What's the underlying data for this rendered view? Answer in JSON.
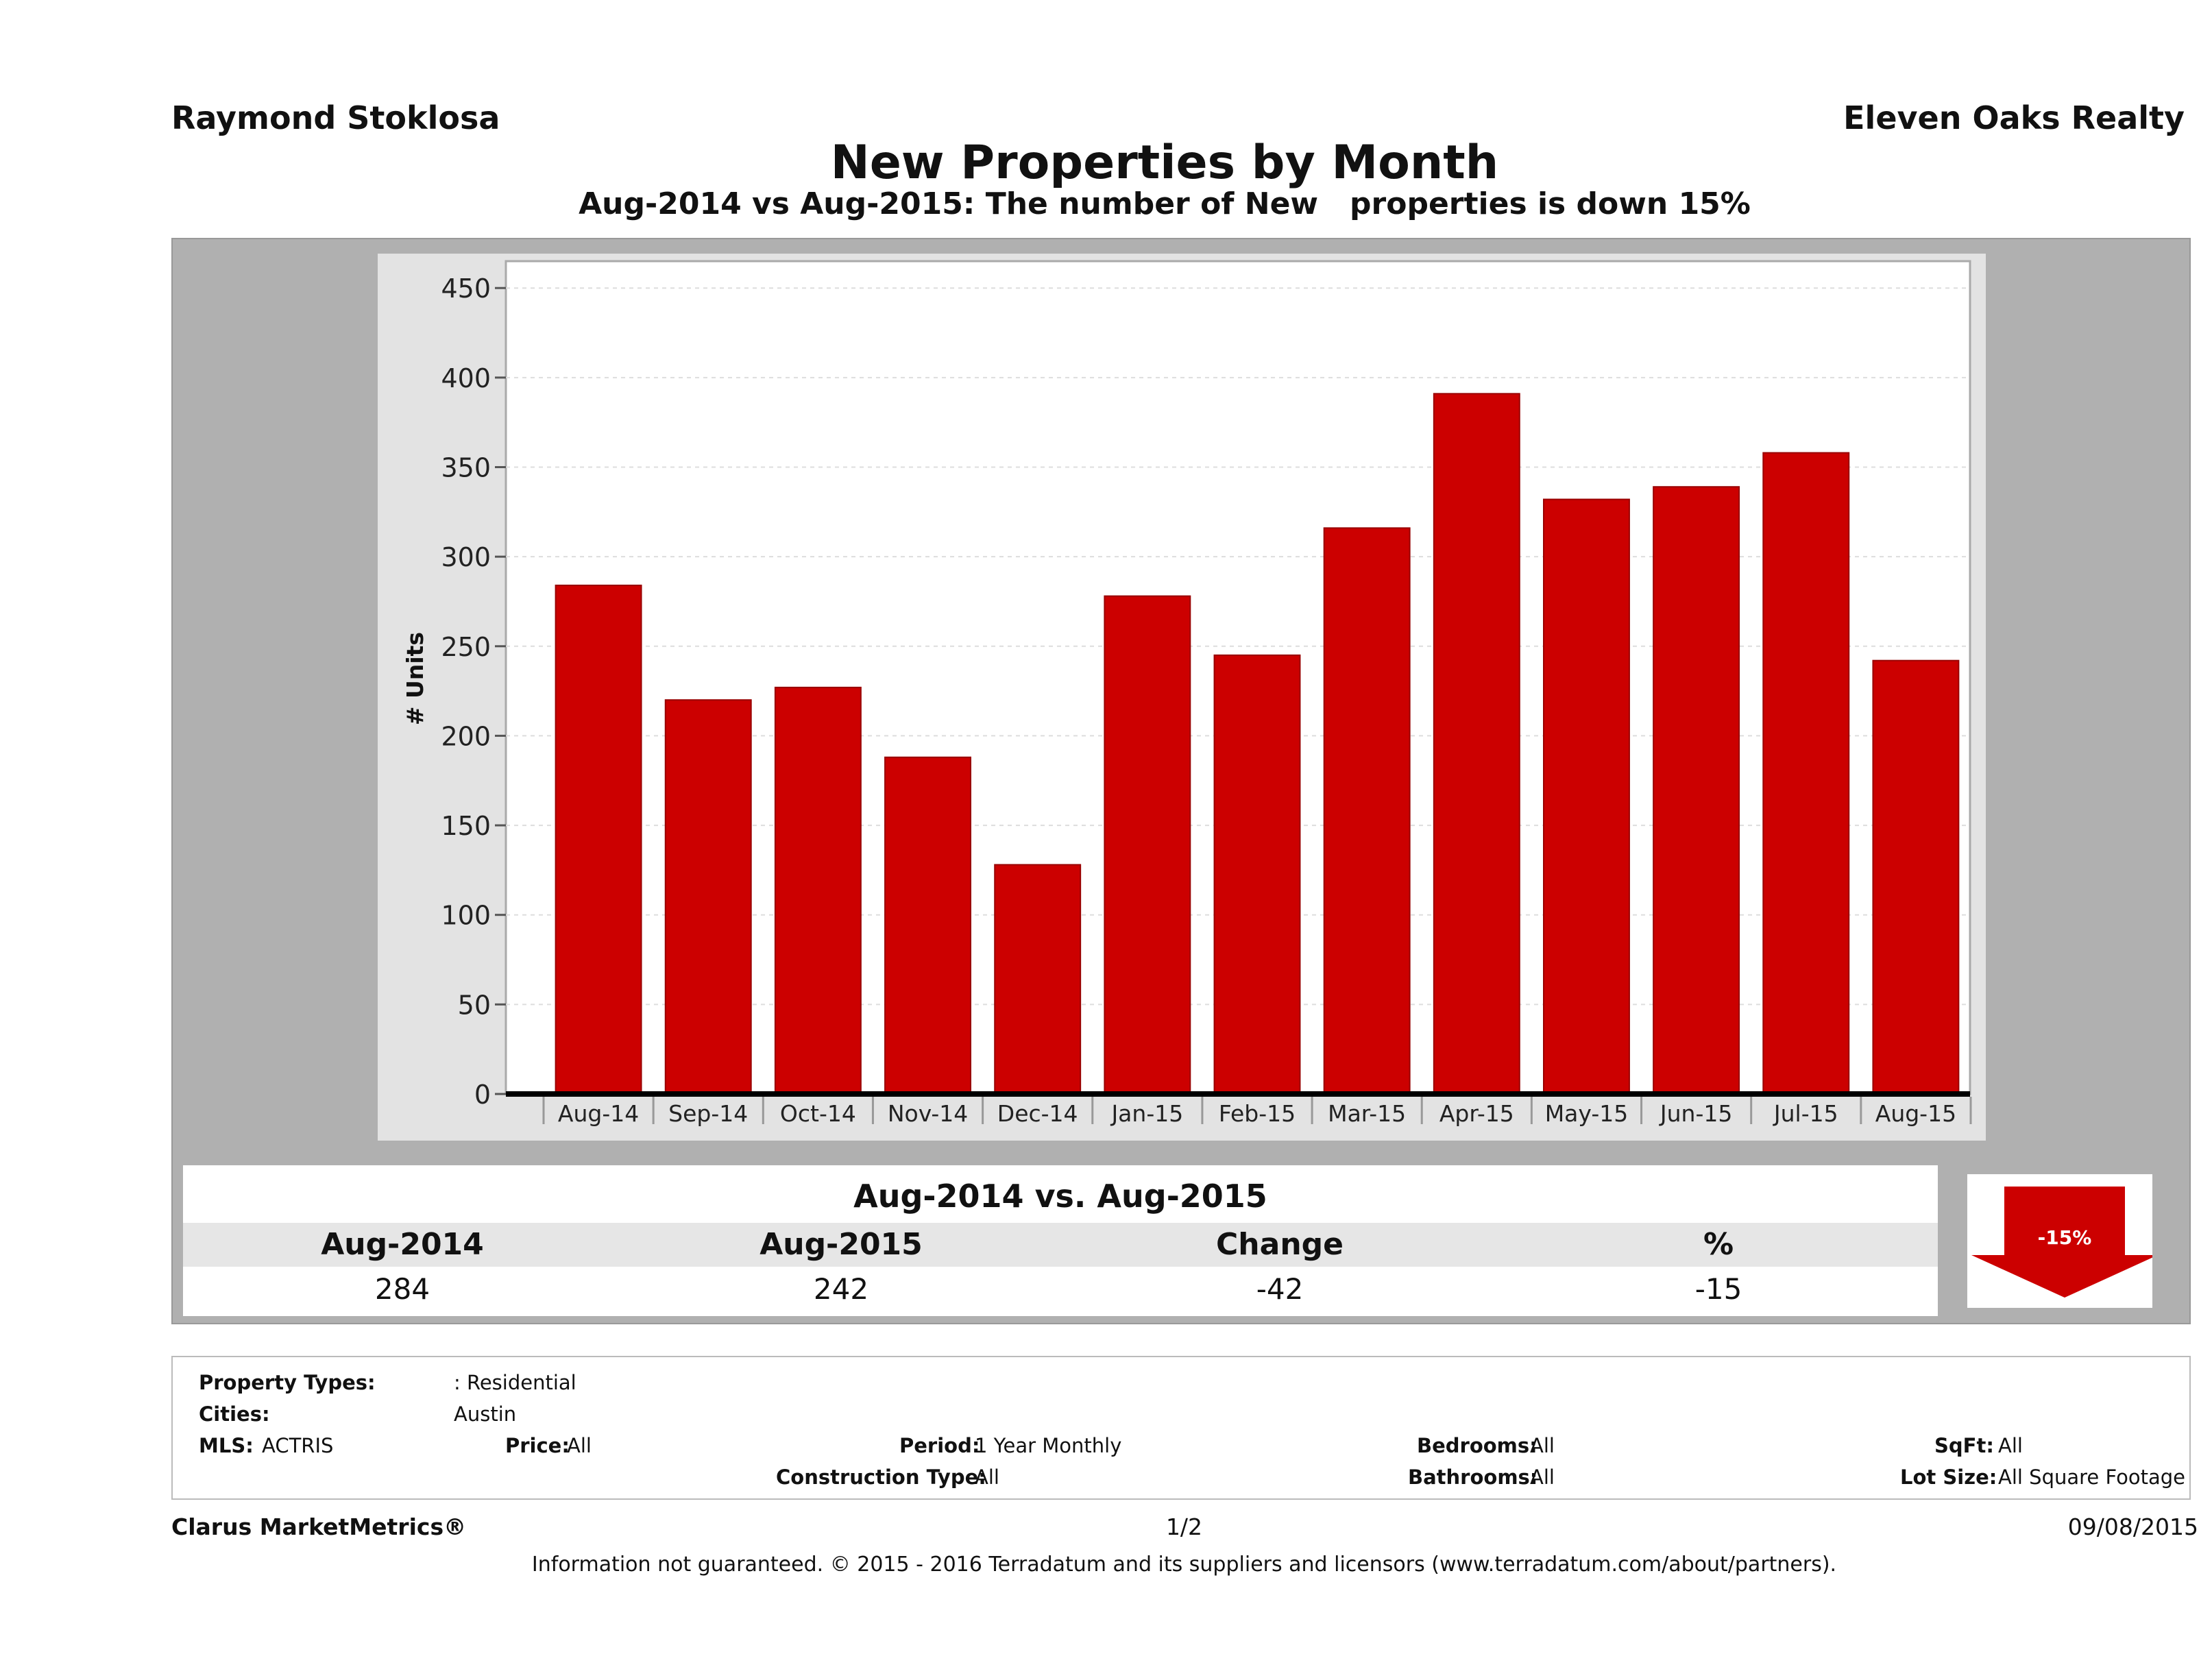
{
  "header": {
    "agent": "Raymond Stoklosa",
    "company": "Eleven Oaks Realty",
    "title": "New Properties by Month",
    "subtitle": "Aug-2014 vs Aug-2015: The number of New   properties is down 15%"
  },
  "chart_data": {
    "type": "bar",
    "categories": [
      "Aug-14",
      "Sep-14",
      "Oct-14",
      "Nov-14",
      "Dec-14",
      "Jan-15",
      "Feb-15",
      "Mar-15",
      "Apr-15",
      "May-15",
      "Jun-15",
      "Jul-15",
      "Aug-15"
    ],
    "values": [
      284,
      220,
      227,
      188,
      128,
      278,
      245,
      316,
      391,
      332,
      339,
      358,
      242
    ],
    "ylabel": "# Units",
    "ylim": [
      0,
      465
    ],
    "yticks": [
      0,
      50,
      100,
      150,
      200,
      250,
      300,
      350,
      400,
      450
    ],
    "grid": true,
    "bar_color": "#cc0000"
  },
  "summary": {
    "title": "Aug-2014 vs. Aug-2015",
    "headers": [
      "Aug-2014",
      "Aug-2015",
      "Change",
      "%"
    ],
    "values": [
      "284",
      "242",
      "-42",
      "-15"
    ],
    "badge": "-15%",
    "badge_color": "#cc0000"
  },
  "filters": {
    "property_types_label": "Property Types:",
    "property_types_value": ": Residential",
    "cities_label": "Cities:",
    "cities_value": "Austin",
    "mls_label": "MLS:",
    "mls_value": "ACTRIS",
    "price_label": "Price:",
    "price_value": "All",
    "period_label": "Period:",
    "period_value": "1 Year Monthly",
    "construction_label": "Construction Type:",
    "construction_value": "All",
    "bedrooms_label": "Bedrooms:",
    "bedrooms_value": "All",
    "bathrooms_label": "Bathrooms:",
    "bathrooms_value": "All",
    "sqft_label": "SqFt:",
    "sqft_value": "All",
    "lotsize_label": "Lot Size:",
    "lotsize_value": "All Square Footage"
  },
  "footer": {
    "brand": "Clarus MarketMetrics®",
    "page": "1/2",
    "date": "09/08/2015",
    "disclaimer": "Information not guaranteed. © 2015 - 2016 Terradatum and its suppliers and licensors (www.terradatum.com/about/partners)."
  }
}
